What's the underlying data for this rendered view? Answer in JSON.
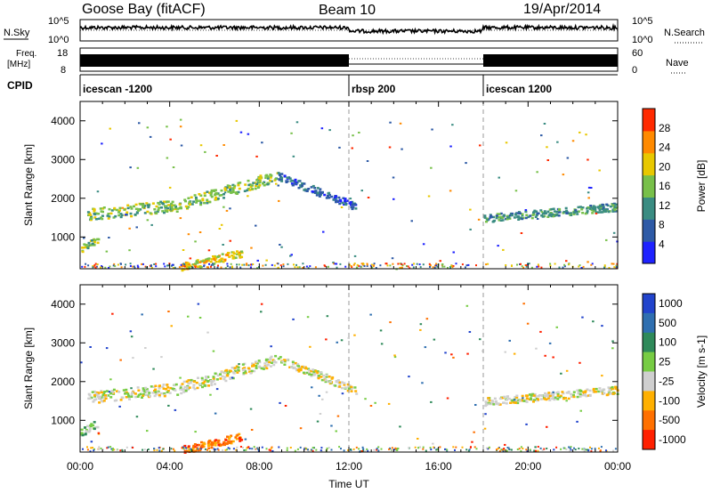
{
  "header": {
    "station": "Goose Bay (fitACF)",
    "beam": "Beam 10",
    "date": "19/Apr/2014"
  },
  "panel_labels": {
    "nsky": "N.Sky",
    "nsearch": "N.Search",
    "freq_top": "Freq.",
    "freq_unit": "[MHz]",
    "nave": "Nave",
    "cpid": "CPID"
  },
  "small_axes": {
    "nsky_ticks": [
      "10^5",
      "10^0"
    ],
    "nsearch_ticks": [
      "10^5",
      "10^0"
    ],
    "freq_ticks": [
      "18",
      "8"
    ],
    "nave_ticks": [
      "60",
      "0"
    ]
  },
  "cpid_segments": [
    {
      "label": "icescan -1200",
      "start_hour": 0
    },
    {
      "label": "rbsp 200",
      "start_hour": 12
    },
    {
      "label": "icescan 1200",
      "start_hour": 18
    }
  ],
  "x_axis": {
    "title": "Time UT",
    "ticks": [
      "00:00",
      "04:00",
      "08:00",
      "12:00",
      "16:00",
      "20:00",
      "00:00"
    ],
    "range_hours": [
      0,
      24
    ]
  },
  "chart_data": [
    {
      "type": "heatmap",
      "ylabel": "Slant Range [km]",
      "yticks": [
        1000,
        2000,
        3000,
        4000
      ],
      "ylim": [
        180,
        4500
      ],
      "colorbar_label": "Power [dB]",
      "colorbar_ticks": [
        "4",
        "8",
        "12",
        "16",
        "20",
        "24",
        "28"
      ],
      "colors": [
        "#1e22ff",
        "#2e5aa6",
        "#3a8c82",
        "#78c04a",
        "#e8c800",
        "#ff8a00",
        "#ff2a00"
      ],
      "echo_bands": [
        {
          "name": "near-range",
          "from_hour": 0,
          "to_hour": 0.8,
          "range_km": [
            700,
            950
          ],
          "level": 3
        },
        {
          "name": "midnight-arc",
          "from_hour": 0.3,
          "to_hour": 8.8,
          "range_km": [
            1400,
            2600
          ],
          "level": 3
        },
        {
          "name": "evening-decline",
          "from_hour": 8.8,
          "to_hour": 12.3,
          "range_km": [
            2600,
            1800
          ],
          "level": 1
        },
        {
          "name": "morning-ground",
          "from_hour": 4.5,
          "to_hour": 7.2,
          "range_km": [
            250,
            600
          ],
          "level": 4
        },
        {
          "name": "late-band",
          "from_hour": 18,
          "to_hour": 24,
          "range_km": [
            1500,
            1800
          ],
          "level": 2
        }
      ]
    },
    {
      "type": "heatmap",
      "ylabel": "Slant Range [km]",
      "yticks": [
        1000,
        2000,
        3000,
        4000
      ],
      "ylim": [
        180,
        4500
      ],
      "colorbar_label": "Velocity [m s-1]",
      "colorbar_ticks": [
        "1000",
        "500",
        "100",
        "25",
        "-25",
        "-100",
        "-500",
        "-1000"
      ],
      "colors": [
        "#2244cc",
        "#2f6fb0",
        "#2f8a5a",
        "#77cc44",
        "#cfcfcf",
        "#ffb000",
        "#ff7000",
        "#ff2000"
      ],
      "echo_bands": [
        {
          "name": "near-range",
          "from_hour": 0,
          "to_hour": 0.8,
          "range_km": [
            700,
            950
          ],
          "level": 3
        },
        {
          "name": "midnight-arc",
          "from_hour": 0.3,
          "to_hour": 8.8,
          "range_km": [
            1400,
            2600
          ],
          "level": 4
        },
        {
          "name": "evening-decline",
          "from_hour": 8.8,
          "to_hour": 12.3,
          "range_km": [
            2600,
            1800
          ],
          "level": 4
        },
        {
          "name": "morning-ground",
          "from_hour": 4.5,
          "to_hour": 7.2,
          "range_km": [
            250,
            600
          ],
          "level": 6
        },
        {
          "name": "late-band",
          "from_hour": 18,
          "to_hour": 24,
          "range_km": [
            1500,
            1800
          ],
          "level": 4
        }
      ]
    }
  ]
}
